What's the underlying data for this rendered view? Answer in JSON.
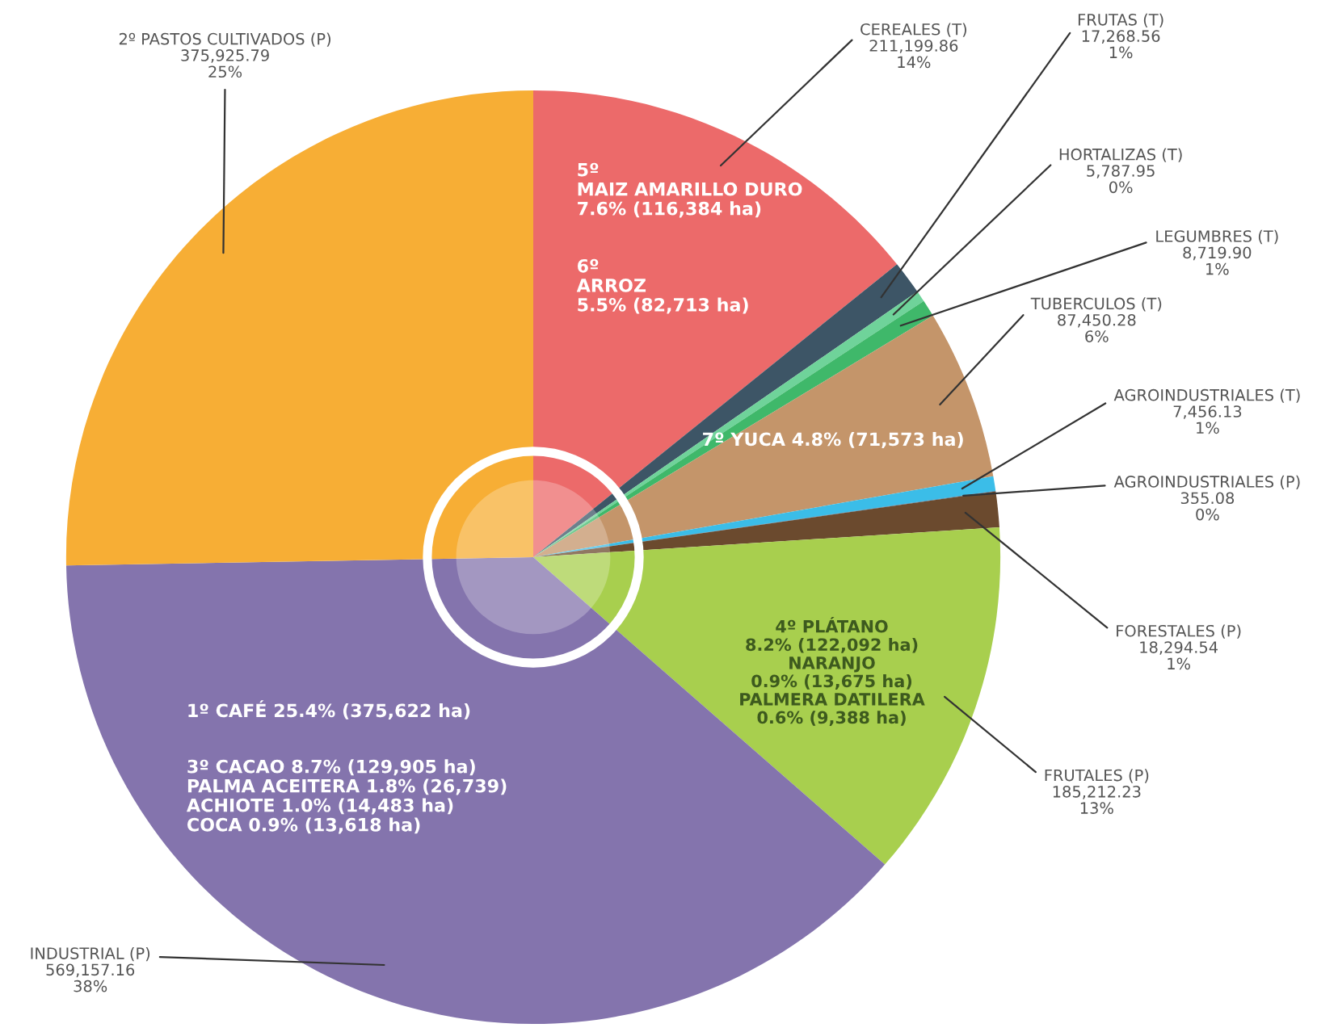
{
  "chart_data": {
    "type": "pie",
    "categories": [
      "CEREALES (T)",
      "FRUTAS (T)",
      "HORTALIZAS (T)",
      "LEGUMBRES (T)",
      "TUBERCULOS (T)",
      "AGROINDUSTRIALES (T)",
      "AGROINDUSTRIALES (P)",
      "FORESTALES (P)",
      "FRUTALES (P)",
      "INDUSTRIAL (P)",
      "2º PASTOS CULTIVADOS (P)"
    ],
    "values": [
      211199.86,
      17268.56,
      5787.95,
      8719.9,
      87450.28,
      7456.13,
      355.08,
      18294.54,
      185212.23,
      569157.16,
      375925.79
    ],
    "colors": [
      "#ec6a6a",
      "#3d5566",
      "#6fd39a",
      "#3fb86a",
      "#c4956a",
      "#3bbde8",
      "#2a7fb0",
      "#6b4a2e",
      "#a8cf4e",
      "#8474ad",
      "#f7ae35"
    ],
    "value_labels": [
      "211,199.86\n14%",
      "17,268.56\n1%",
      "5,787.95\n0%",
      "8,719.90\n1%",
      "87,450.28\n6%",
      "7,456.13\n1%",
      "355.08\n0%",
      "18,294.54\n1%",
      "185,212.23\n13%",
      "569,157.16\n38%",
      "375,925.79\n25%"
    ],
    "annotations": [
      "5º\nMAIZ AMARILLO DURO\n7.6% (116,384 ha)",
      "6º\nARROZ\n5.5% (82,713 ha)",
      "7º YUCA 4.8% (71,573 ha)",
      "4º PLÁTANO\n8.2% (122,092 ha)\nNARANJO\n0.9% (13,675 ha)\nPALMERA DATILERA\n0.6% (9,388 ha)",
      "1º CAFÉ 25.4% (375,622 ha)",
      "3º CACAO 8.7% (129,905 ha)\nPALMA ACEITERA 1.8% (26,739)\nACHIOTE 1.0% (14,483 ha)\nCOCA 0.9% (13,618 ha)"
    ]
  }
}
